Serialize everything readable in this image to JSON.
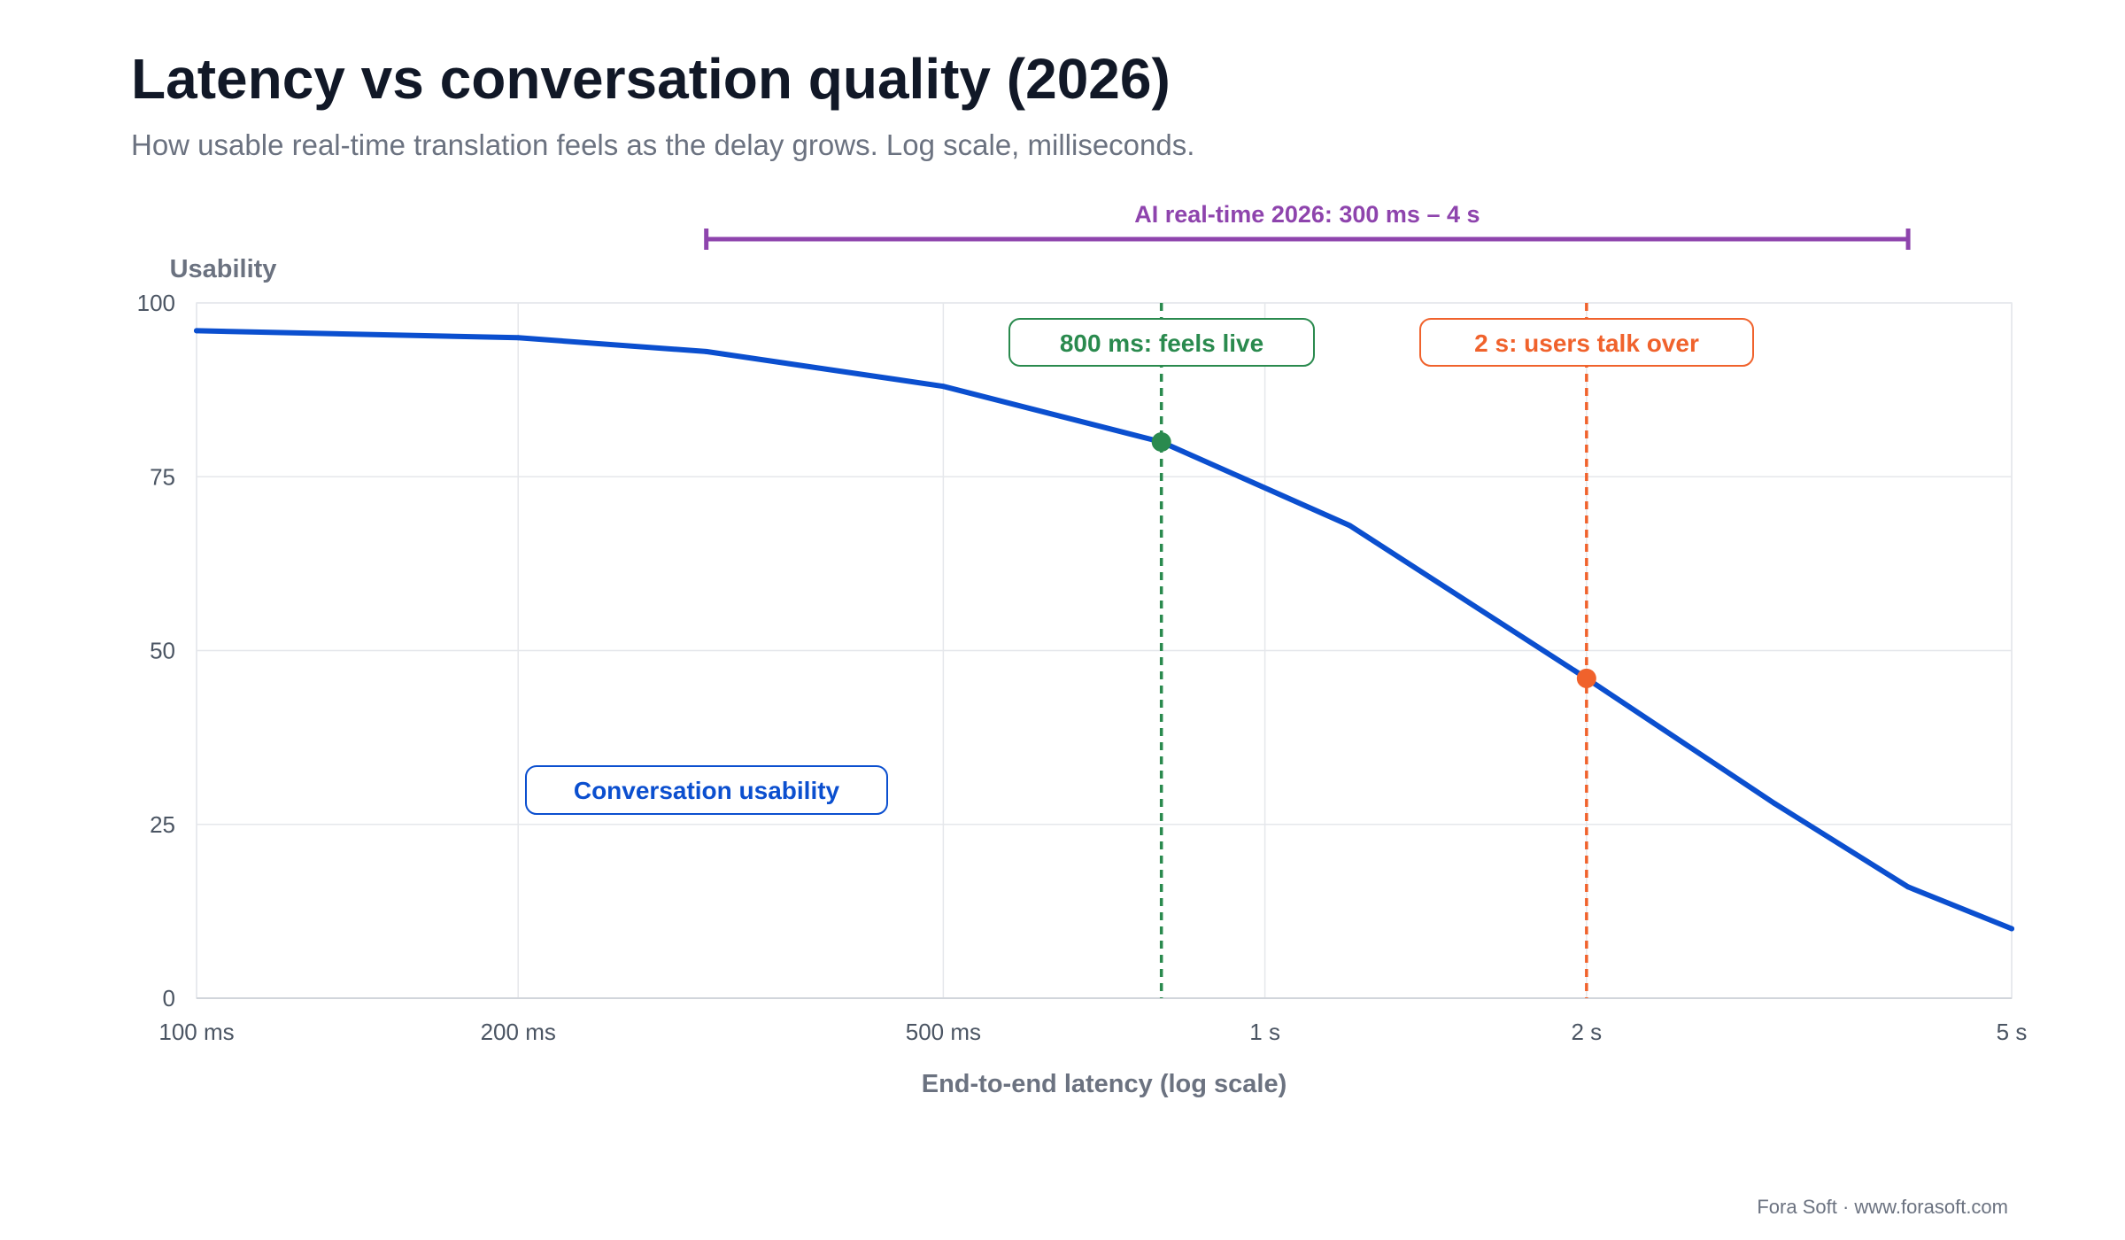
{
  "header": {
    "title": "Latency vs conversation quality (2026)",
    "subtitle": "How usable real-time translation feels as the delay grows. Log scale, milliseconds."
  },
  "footer": {
    "credit": "Fora Soft · www.forasoft.com"
  },
  "colors": {
    "line": "#0b4fcf",
    "threshold_live": "#2a8a4e",
    "threshold_talk": "#f0622c",
    "range": "#8e44ad",
    "grid": "#e5e7eb",
    "axis": "#d1d5db"
  },
  "chart_data": {
    "type": "line",
    "title": "Latency vs conversation quality (2026)",
    "subtitle": "How usable real-time translation feels as the delay grows. Log scale, milliseconds.",
    "xlabel": "End-to-end latency (log scale)",
    "ylabel": "Usability",
    "x_scale": "log",
    "x_unit": "ms",
    "xlim": [
      100,
      5000
    ],
    "ylim": [
      0,
      100
    ],
    "grid": true,
    "x_ticks": [
      {
        "value": 100,
        "label": "100 ms"
      },
      {
        "value": 200,
        "label": "200 ms"
      },
      {
        "value": 500,
        "label": "500 ms"
      },
      {
        "value": 1000,
        "label": "1 s"
      },
      {
        "value": 2000,
        "label": "2 s"
      },
      {
        "value": 5000,
        "label": "5 s"
      }
    ],
    "y_ticks": [
      {
        "value": 0,
        "label": "0"
      },
      {
        "value": 25,
        "label": "25"
      },
      {
        "value": 50,
        "label": "50"
      },
      {
        "value": 75,
        "label": "75"
      },
      {
        "value": 100,
        "label": "100"
      }
    ],
    "series": [
      {
        "name": "Conversation usability",
        "color": "#0b4fcf",
        "x": [
          100,
          200,
          300,
          500,
          800,
          1200,
          2000,
          3000,
          4000,
          5000
        ],
        "y": [
          96,
          95,
          93,
          88,
          80,
          68,
          46,
          28,
          16,
          10
        ]
      }
    ],
    "thresholds": [
      {
        "x": 800,
        "y": 80,
        "label": "800 ms: feels live",
        "color": "#2a8a4e"
      },
      {
        "x": 2000,
        "y": 46,
        "label": "2 s: users talk over",
        "color": "#f0622c"
      }
    ],
    "range": {
      "from": 300,
      "to": 4000,
      "label": "AI real-time 2026: 300 ms – 4 s",
      "color": "#8e44ad"
    }
  }
}
